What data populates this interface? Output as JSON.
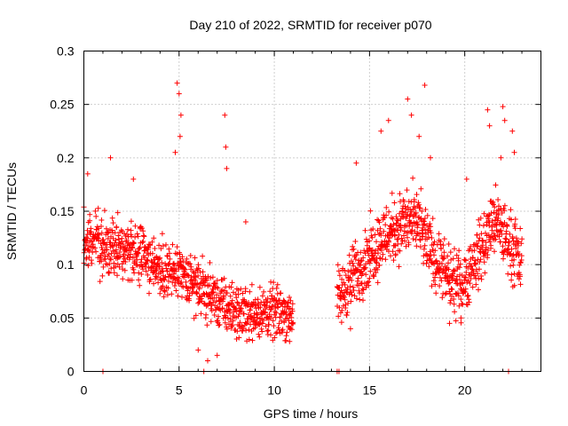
{
  "chart_data": {
    "type": "scatter",
    "title": "Day 210 of 2022, SRMTID for receiver p070",
    "xlabel": "GPS time / hours",
    "ylabel": "SRMTID / TECUs",
    "xlim": [
      0,
      24
    ],
    "ylim": [
      0,
      0.3
    ],
    "x_ticks": [
      0,
      5,
      10,
      15,
      20
    ],
    "x_tick_labels": [
      "0",
      "5",
      "10",
      "15",
      "20"
    ],
    "y_ticks": [
      0,
      0.05,
      0.1,
      0.15,
      0.2,
      0.25,
      0.3
    ],
    "y_tick_labels": [
      "0",
      "0.05",
      "0.1",
      "0.15",
      "0.2",
      "0.25",
      "0.3"
    ],
    "grid": true,
    "marker": "+",
    "color": "#ff0000",
    "series": [
      {
        "name": "SRMTID",
        "segments": [
          {
            "start": 0.0,
            "end": 11.0,
            "step": 0.012,
            "envelope": [
              [
                0,
                0.12
              ],
              [
                1,
                0.12
              ],
              [
                2,
                0.115
              ],
              [
                3,
                0.11
              ],
              [
                4,
                0.095
              ],
              [
                5,
                0.09
              ],
              [
                6,
                0.08
              ],
              [
                7,
                0.065
              ],
              [
                8,
                0.055
              ],
              [
                9,
                0.055
              ],
              [
                10,
                0.055
              ],
              [
                11,
                0.055
              ]
            ],
            "spread": 0.032
          },
          {
            "start": 13.3,
            "end": 23.0,
            "step": 0.012,
            "envelope": [
              [
                13.3,
                0.065
              ],
              [
                14,
                0.085
              ],
              [
                15,
                0.11
              ],
              [
                16,
                0.13
              ],
              [
                17,
                0.14
              ],
              [
                17.5,
                0.14
              ],
              [
                18,
                0.12
              ],
              [
                19,
                0.09
              ],
              [
                19.5,
                0.08
              ],
              [
                20,
                0.085
              ],
              [
                21,
                0.12
              ],
              [
                21.5,
                0.14
              ],
              [
                22,
                0.13
              ],
              [
                23,
                0.1
              ]
            ],
            "spread": 0.036
          }
        ],
        "spikes": [
          {
            "x": 4.9,
            "y": 0.27
          },
          {
            "x": 5.0,
            "y": 0.26
          },
          {
            "x": 5.1,
            "y": 0.24
          },
          {
            "x": 5.05,
            "y": 0.22
          },
          {
            "x": 4.8,
            "y": 0.205
          },
          {
            "x": 7.4,
            "y": 0.24
          },
          {
            "x": 7.45,
            "y": 0.21
          },
          {
            "x": 7.5,
            "y": 0.19
          },
          {
            "x": 8.5,
            "y": 0.14
          },
          {
            "x": 0.2,
            "y": 0.185
          },
          {
            "x": 1.4,
            "y": 0.2
          },
          {
            "x": 2.6,
            "y": 0.18
          },
          {
            "x": 14.3,
            "y": 0.195
          },
          {
            "x": 15.6,
            "y": 0.225
          },
          {
            "x": 16.0,
            "y": 0.235
          },
          {
            "x": 17.0,
            "y": 0.255
          },
          {
            "x": 17.2,
            "y": 0.24
          },
          {
            "x": 17.6,
            "y": 0.22
          },
          {
            "x": 17.9,
            "y": 0.268
          },
          {
            "x": 18.2,
            "y": 0.2
          },
          {
            "x": 20.1,
            "y": 0.18
          },
          {
            "x": 21.2,
            "y": 0.245
          },
          {
            "x": 21.3,
            "y": 0.23
          },
          {
            "x": 22.0,
            "y": 0.248
          },
          {
            "x": 22.1,
            "y": 0.235
          },
          {
            "x": 22.5,
            "y": 0.225
          },
          {
            "x": 22.6,
            "y": 0.205
          },
          {
            "x": 21.9,
            "y": 0.2
          },
          {
            "x": 6.0,
            "y": 0.02
          },
          {
            "x": 6.5,
            "y": 0.01
          },
          {
            "x": 7.0,
            "y": 0.015
          },
          {
            "x": 10.8,
            "y": 0.028
          },
          {
            "x": 14.0,
            "y": 0.04
          },
          {
            "x": 19.2,
            "y": 0.045
          },
          {
            "x": 19.8,
            "y": 0.05
          }
        ],
        "zeros": [
          1.0,
          6.3,
          13.3,
          13.4,
          22.3
        ]
      }
    ]
  }
}
